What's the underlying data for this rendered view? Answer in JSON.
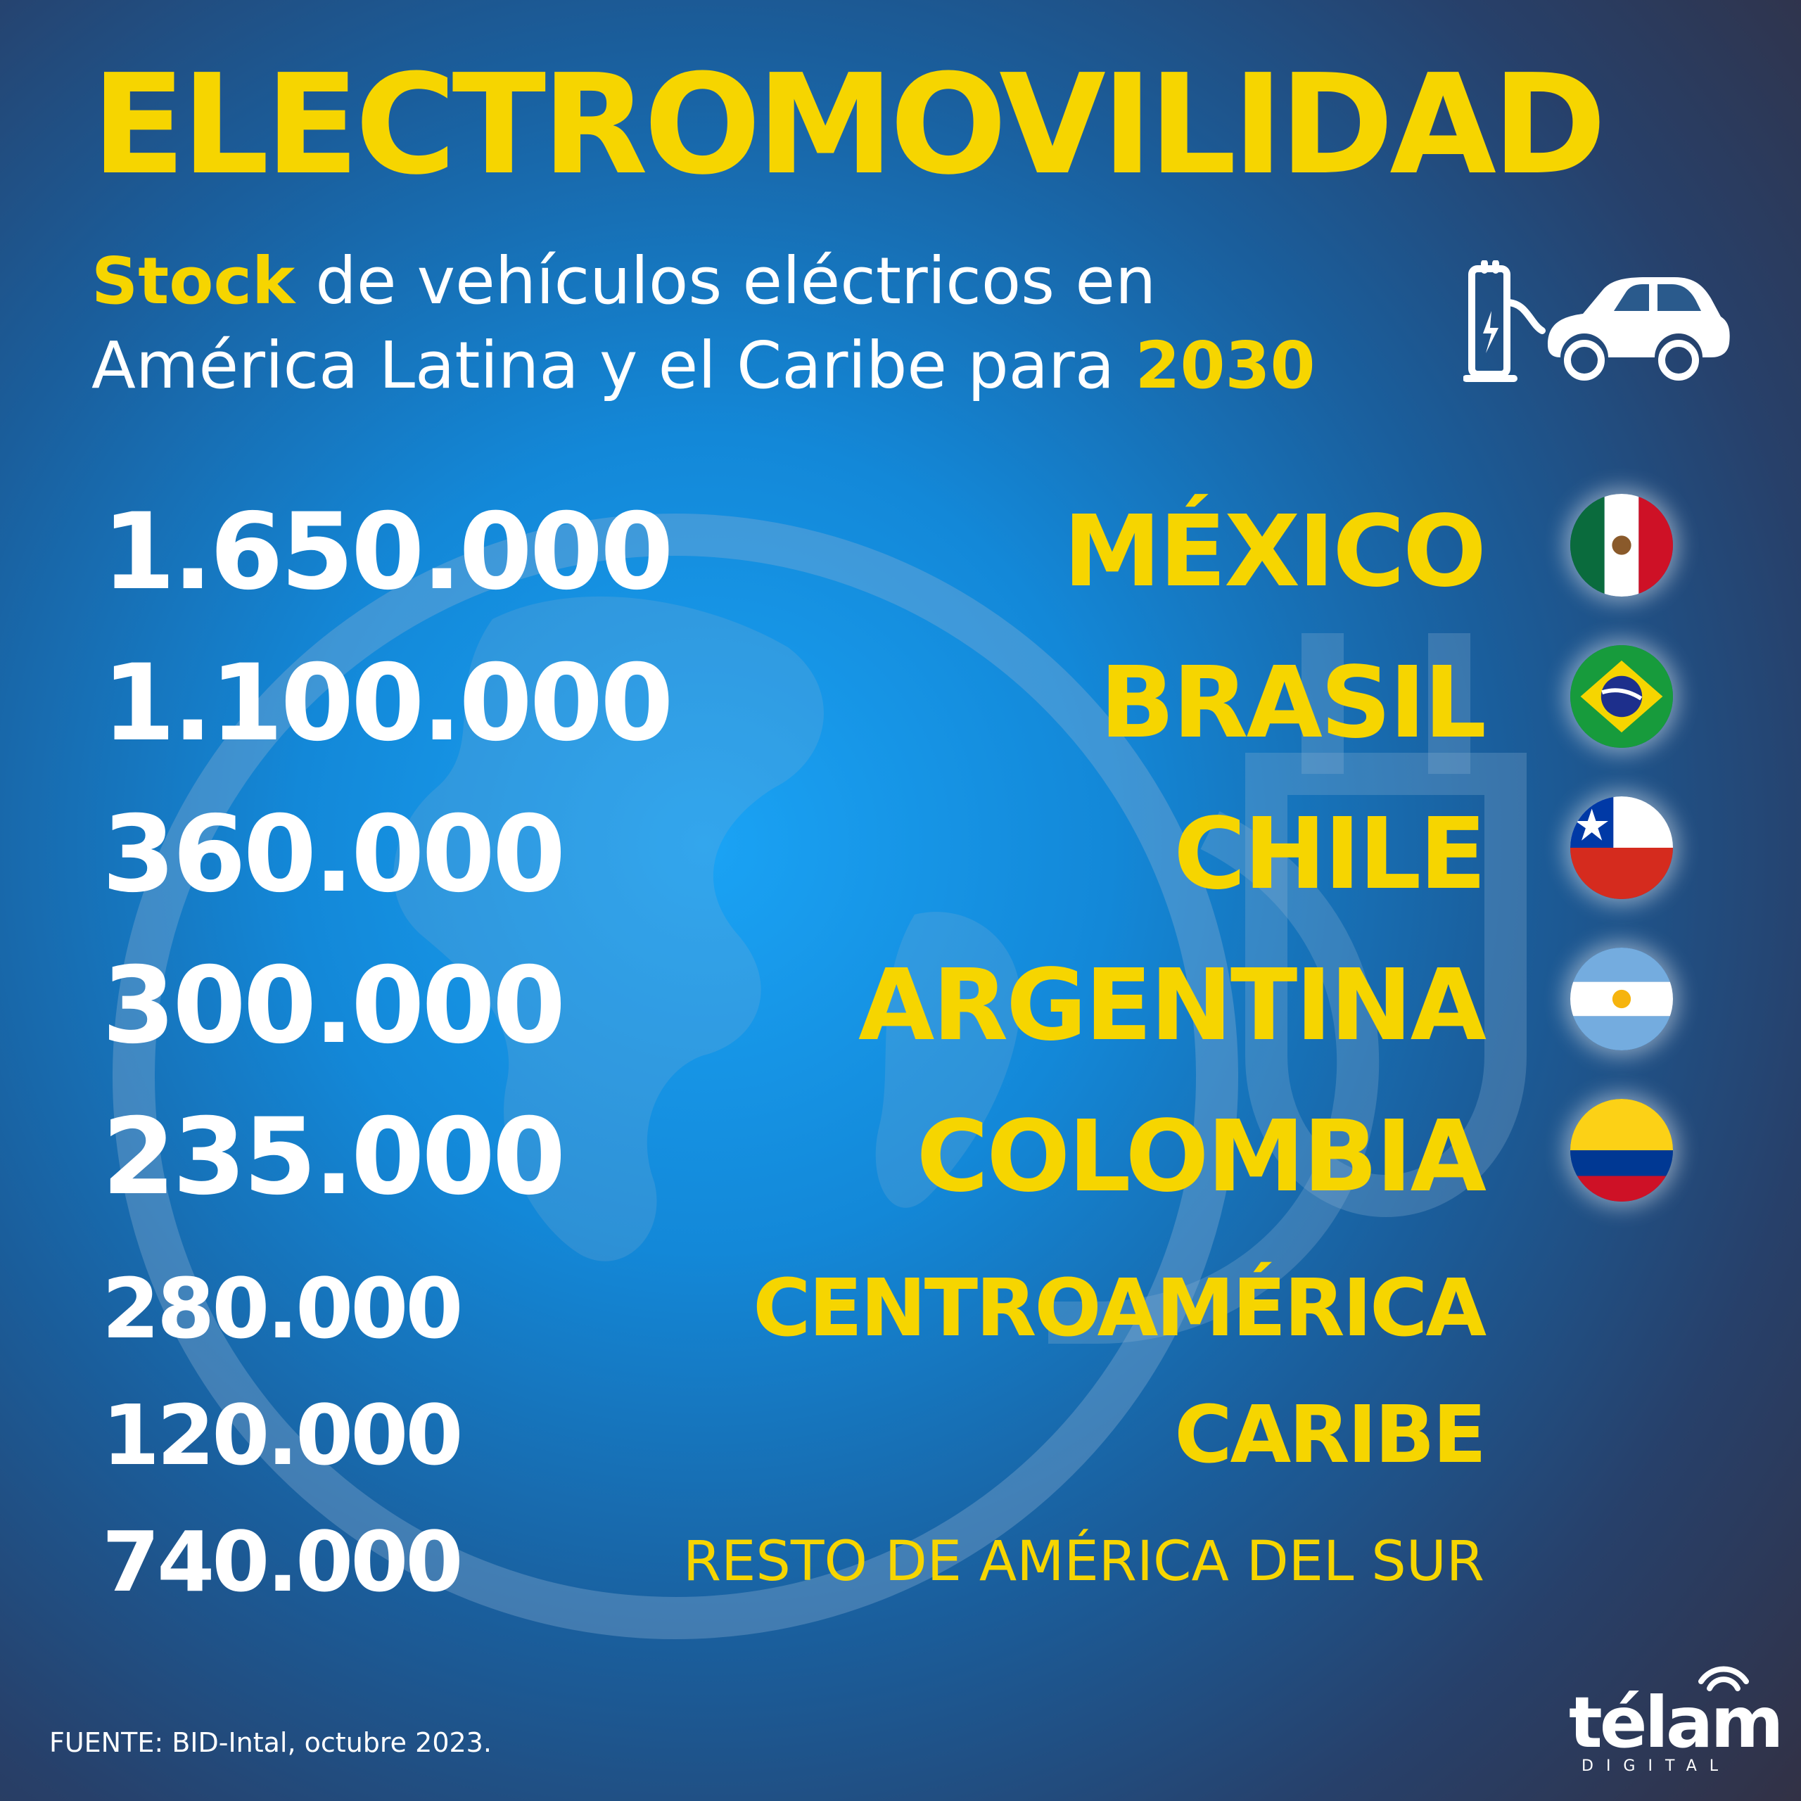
{
  "title": "ELECTROMOVILIDAD",
  "subtitle": {
    "highlight_word": "Stock",
    "line1_rest": " de vehículos eléctricos en",
    "line2_main": "América Latina y el Caribe para ",
    "year": "2030"
  },
  "rows": [
    {
      "value": "1.650.000",
      "country": "MÉXICO",
      "flag": "mexico-flag-icon"
    },
    {
      "value": "1.100.000",
      "country": "BRASIL",
      "flag": "brazil-flag-icon"
    },
    {
      "value": "360.000",
      "country": "CHILE",
      "flag": "chile-flag-icon"
    },
    {
      "value": "300.000",
      "country": "ARGENTINA",
      "flag": "argentina-flag-icon"
    },
    {
      "value": "235.000",
      "country": "COLOMBIA",
      "flag": "colombia-flag-icon"
    },
    {
      "value": "280.000",
      "country": "CENTROAMÉRICA"
    },
    {
      "value": "120.000",
      "country": "CARIBE"
    },
    {
      "value": "740.000",
      "country": "RESTO DE AMÉRICA DEL SUR"
    }
  ],
  "source": "FUENTE: BID-Intal, octubre 2023.",
  "logo": {
    "word": "télam",
    "sub": "DIGITAL"
  },
  "colors": {
    "accent": "#f6d500",
    "text": "#ffffff"
  }
}
